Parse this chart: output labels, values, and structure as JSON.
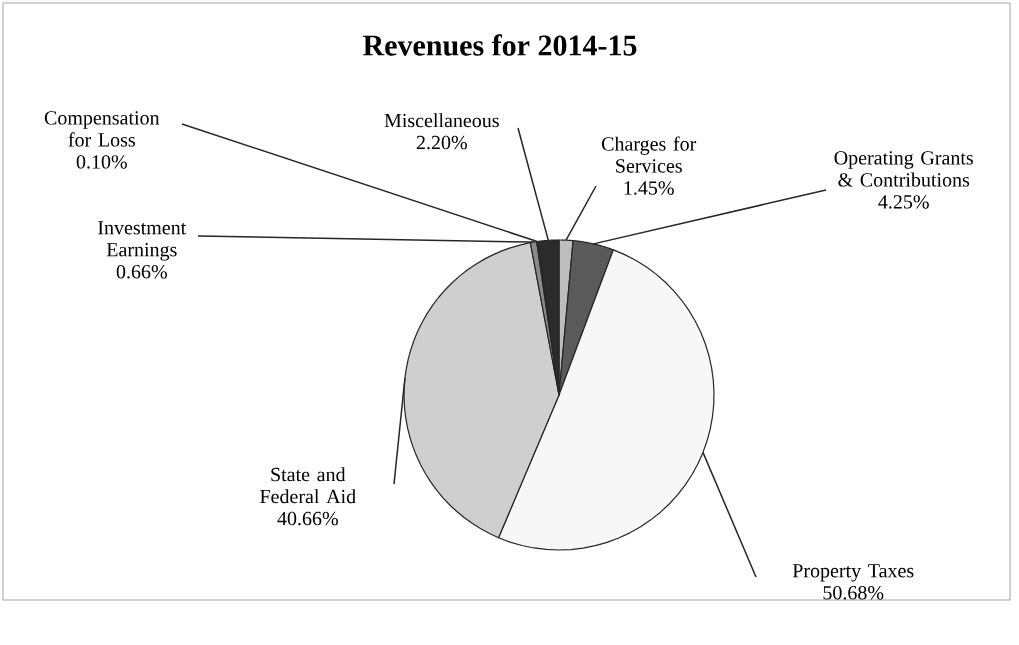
{
  "chart_data": {
    "type": "pie",
    "title": "Revenues for 2014-15",
    "categories": [
      "Charges for Services",
      "Operating Grants & Contributions",
      "Property Taxes",
      "State and Federal Aid",
      "Investment Earnings",
      "Compensation for Loss",
      "Miscellaneous"
    ],
    "values": [
      1.45,
      4.25,
      50.68,
      40.66,
      0.66,
      0.1,
      2.2
    ],
    "colors": [
      "#bdbdbd",
      "#5a5a5a",
      "#f7f7f7",
      "#cfcfcf",
      "#8a8a8a",
      "#d9d9d9",
      "#2b2b2b"
    ],
    "value_labels": [
      "1.45%",
      "4.25%",
      "50.68%",
      "40.66%",
      "0.66%",
      "0.10%",
      "2.20%"
    ]
  }
}
